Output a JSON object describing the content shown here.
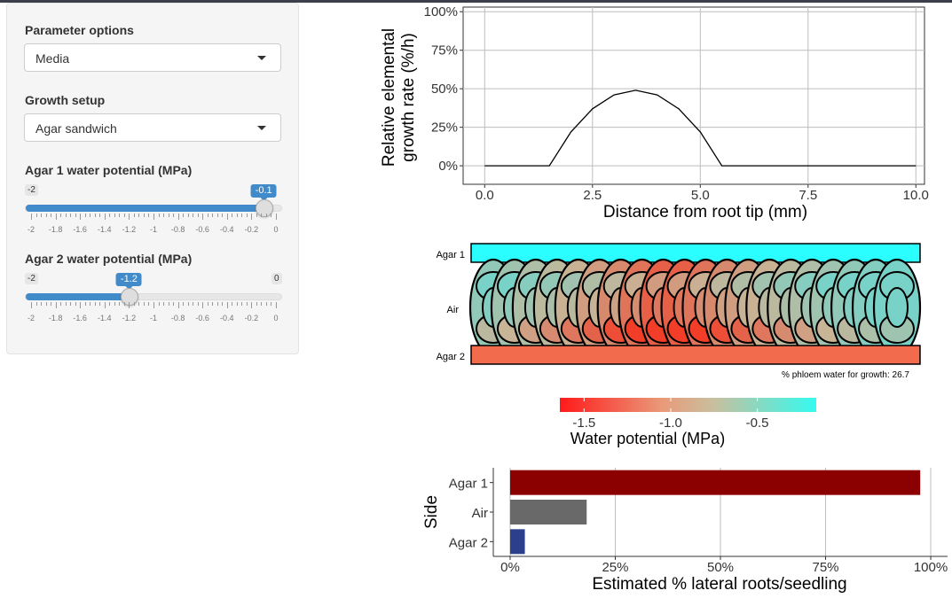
{
  "sidebar": {
    "parameter_options": {
      "label": "Parameter options",
      "value": "Media"
    },
    "growth_setup": {
      "label": "Growth setup",
      "value": "Agar sandwich"
    },
    "agar1_slider": {
      "label": "Agar 1 water potential (MPa)",
      "min_label": "-2",
      "value_label": "-0.1",
      "value": -0.1,
      "min": -2,
      "max": 0
    },
    "agar2_slider": {
      "label": "Agar 2 water potential (MPa)",
      "min_label": "-2",
      "max_label": "0",
      "value_label": "-1.2",
      "value": -1.2,
      "min": -2,
      "max": 0
    },
    "tick_labels": [
      "-2",
      "-1.8",
      "-1.6",
      "-1.4",
      "-1.2",
      "-1",
      "-0.8",
      "-0.6",
      "-0.4",
      "-0.2",
      "0"
    ]
  },
  "chart_data": [
    {
      "type": "line",
      "ylabel_line1": "Relative elemental",
      "ylabel_line2": "growth rate (%/h)",
      "xlabel": "Distance from root tip (mm)",
      "x": [
        0,
        1.5,
        2.0,
        2.5,
        3.0,
        3.5,
        4.0,
        4.5,
        5.0,
        5.5,
        6.0,
        10.0
      ],
      "y": [
        0,
        0,
        22,
        37,
        46,
        49,
        46,
        37,
        22,
        0,
        0,
        0
      ],
      "xlim": [
        -0.5,
        10.2
      ],
      "ylim": [
        -12,
        103
      ],
      "xticks": [
        "0.0",
        "2.5",
        "5.0",
        "7.5",
        "10.0"
      ],
      "yticks": [
        "0%",
        "25%",
        "50%",
        "75%",
        "100%"
      ],
      "grid": true
    },
    {
      "type": "heatmap",
      "side_labels": [
        "Agar 1",
        "Air",
        "Agar 2"
      ],
      "annotation": "% phloem water for growth: 26.7",
      "agar1_color": "#2bfefe",
      "agar2_color": "#f26b4c",
      "legend_title": "Water potential (MPa)",
      "legend_ticks": [
        "-1.5",
        "-1.0",
        "-0.5"
      ],
      "legend_stops": [
        "#ff1a1a",
        "#e99a7a",
        "#c8bf9e",
        "#34fbf0"
      ]
    },
    {
      "type": "bar",
      "orientation": "horizontal",
      "categories": [
        "Agar 1",
        "Air",
        "Agar 2"
      ],
      "values": [
        97.5,
        18.2,
        3.5
      ],
      "colors": [
        "#8b0000",
        "#696969",
        "#2b3f8c"
      ],
      "xlabel": "Estimated % lateral roots/seedling",
      "ylabel": "Side",
      "xticks": [
        "0%",
        "25%",
        "50%",
        "75%",
        "100%"
      ],
      "xlim": [
        -4,
        104
      ],
      "grid": true
    }
  ]
}
